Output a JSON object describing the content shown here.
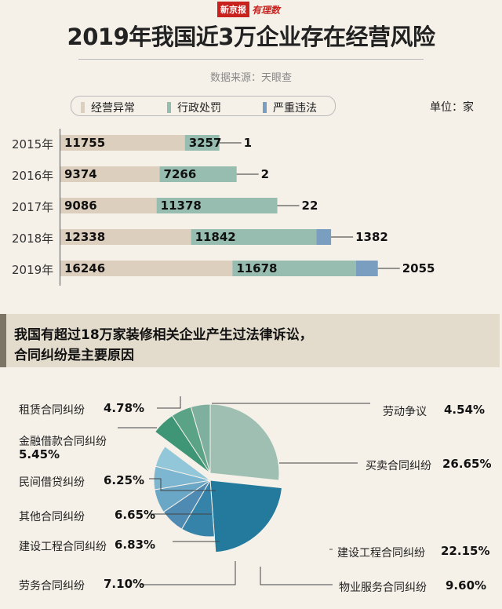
{
  "brand": {
    "paper": "新京报",
    "logo": "有理数"
  },
  "title": "2019年我国近3万企业存在经营风险",
  "source": "数据来源：天眼查",
  "legend": [
    {
      "label": "经营异常",
      "color": "#dccfbe"
    },
    {
      "label": "行政处罚",
      "color": "#97bdb1"
    },
    {
      "label": "严重违法",
      "color": "#7a9ec0"
    }
  ],
  "unit": "单位：家",
  "banner": {
    "line1": "我国有超过18万家装修相关企业产生过法律诉讼，",
    "line2": "合同纠纷是主要原因"
  },
  "chart_data": [
    {
      "type": "bar",
      "stacked": true,
      "orientation": "horizontal",
      "categories": [
        "2015年",
        "2016年",
        "2017年",
        "2018年",
        "2019年"
      ],
      "series": [
        {
          "name": "经营异常",
          "values": [
            11755,
            9374,
            9086,
            12338,
            16246
          ],
          "color": "#dccfbe"
        },
        {
          "name": "行政处罚",
          "values": [
            3257,
            7266,
            11378,
            11842,
            11678
          ],
          "color": "#97bdb1"
        },
        {
          "name": "严重违法",
          "values": [
            1,
            2,
            22,
            1382,
            2055
          ],
          "color": "#7a9ec0"
        }
      ]
    },
    {
      "type": "pie",
      "slices": [
        {
          "label": "劳动争议",
          "value": 4.54,
          "pct": "4.54%",
          "color": "#7fb09f"
        },
        {
          "label": "买卖合同纠纷",
          "value": 26.65,
          "pct": "26.65%",
          "color": "#9fbfb3"
        },
        {
          "label": "建设工程合同纠纷",
          "value": 22.15,
          "pct": "22.15%",
          "color": "#247a9c"
        },
        {
          "label": "物业服务合同纠纷",
          "value": 9.6,
          "pct": "9.60%",
          "color": "#3583a8"
        },
        {
          "label": "劳务合同纠纷",
          "value": 7.1,
          "pct": "7.10%",
          "color": "#4f8ab3"
        },
        {
          "label": "建设工程合同纠纷",
          "value": 6.83,
          "pct": "6.83%",
          "color": "#6aa6c6"
        },
        {
          "label": "其他合同纠纷",
          "value": 6.65,
          "pct": "6.65%",
          "color": "#7db6d1"
        },
        {
          "label": "民间借贷纠纷",
          "value": 6.25,
          "pct": "6.25%",
          "color": "#92c7d9"
        },
        {
          "label": "金融借款合同纠纷",
          "value": 5.45,
          "pct": "5.45%",
          "color": "#3e9676"
        },
        {
          "label": "租赁合同纠纷",
          "value": 4.78,
          "pct": "4.78%",
          "color": "#5aa387"
        }
      ]
    }
  ]
}
